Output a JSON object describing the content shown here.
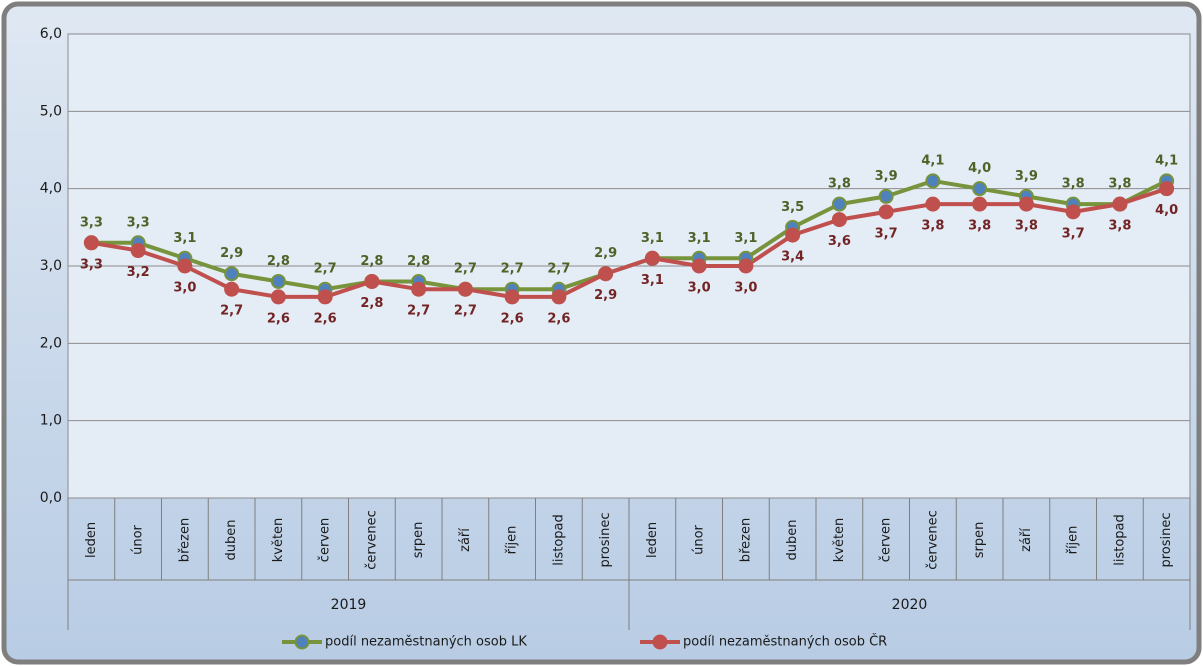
{
  "chart_data": {
    "type": "line",
    "categories": [
      "leden",
      "únor",
      "březen",
      "duben",
      "květen",
      "červen",
      "červenec",
      "srpen",
      "září",
      "říjen",
      "listopad",
      "prosinec",
      "leden",
      "únor",
      "březen",
      "duben",
      "květen",
      "červen",
      "červenec",
      "srpen",
      "září",
      "říjen",
      "listopad",
      "prosinec"
    ],
    "category_groups": [
      "2019",
      "2020"
    ],
    "series": [
      {
        "name": "podíl nezaměstnaných osob LK",
        "color": "#77933c",
        "marker_color": "#4f81bd",
        "label_color": "#4f6228",
        "values": [
          3.3,
          3.3,
          3.1,
          2.9,
          2.8,
          2.7,
          2.8,
          2.8,
          2.7,
          2.7,
          2.7,
          2.9,
          3.1,
          3.1,
          3.1,
          3.5,
          3.8,
          3.9,
          4.1,
          4.0,
          3.9,
          3.8,
          3.8,
          4.1
        ],
        "value_labels": [
          "3,3",
          "3,3",
          "3,1",
          "2,9",
          "2,8",
          "2,7",
          "2,8",
          "2,8",
          "2,7",
          "2,7",
          "2,7",
          "2,9",
          "3,1",
          "3,1",
          "3,1",
          "3,5",
          "3,8",
          "3,9",
          "4,1",
          "4,0",
          "3,9",
          "3,8",
          "3,8",
          "4,1"
        ]
      },
      {
        "name": "podíl nezaměstnaných osob ČR",
        "color": "#c0504d",
        "marker_color": "#c0504d",
        "label_color": "#722424",
        "values": [
          3.3,
          3.2,
          3.0,
          2.7,
          2.6,
          2.6,
          2.8,
          2.7,
          2.7,
          2.6,
          2.6,
          2.9,
          3.1,
          3.0,
          3.0,
          3.4,
          3.6,
          3.7,
          3.8,
          3.8,
          3.8,
          3.7,
          3.8,
          4.0
        ],
        "value_labels": [
          "3,3",
          "3,2",
          "3,0",
          "2,7",
          "2,6",
          "2,6",
          "2,8",
          "2,7",
          "2,7",
          "2,6",
          "2,6",
          "2,9",
          "3,1",
          "3,0",
          "3,0",
          "3,4",
          "3,6",
          "3,7",
          "3,8",
          "3,8",
          "3,8",
          "3,7",
          "3,8",
          "4,0"
        ]
      }
    ],
    "ylim": [
      0,
      6
    ],
    "yticks": [
      {
        "value": 0,
        "label": "0,0"
      },
      {
        "value": 1,
        "label": "1,0"
      },
      {
        "value": 2,
        "label": "2,0"
      },
      {
        "value": 3,
        "label": "3,0"
      },
      {
        "value": 4,
        "label": "4,0"
      },
      {
        "value": 5,
        "label": "5,0"
      },
      {
        "value": 6,
        "label": "6,0"
      }
    ],
    "grid": true,
    "legend": "bottom"
  }
}
